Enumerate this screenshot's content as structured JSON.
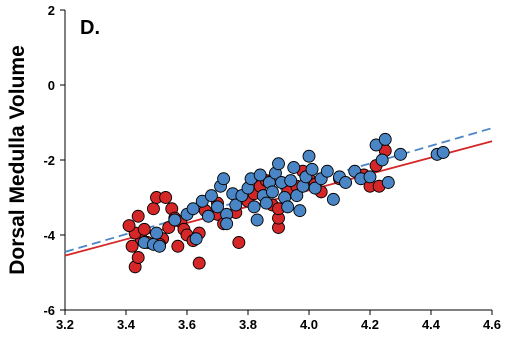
{
  "chart_data": {
    "type": "scatter",
    "panel_label": "D.",
    "title": "",
    "xlabel": "",
    "ylabel": "Dorsal Medulla Volume",
    "xlim": [
      3.2,
      4.6
    ],
    "ylim": [
      -6,
      2
    ],
    "x_ticks": [
      "3.2",
      "3.4",
      "3.6",
      "3.8",
      "4.0",
      "4.2",
      "4.4",
      "4.6"
    ],
    "y_ticks": [
      "-6",
      "-4",
      "-2",
      "0",
      "2"
    ],
    "grid": false,
    "legend": "none",
    "colors": {
      "red": "#d62728",
      "blue": "#4a86c5",
      "red_line": "#d62728",
      "blue_line": "#4a86c5"
    },
    "series": [
      {
        "color": "red",
        "fit": {
          "x": [
            3.2,
            4.6
          ],
          "y": [
            -4.55,
            -1.5
          ],
          "style": "solid"
        },
        "points": [
          [
            3.43,
            -4.85
          ],
          [
            3.44,
            -4.6
          ],
          [
            3.42,
            -4.3
          ],
          [
            3.45,
            -4.1
          ],
          [
            3.43,
            -3.95
          ],
          [
            3.46,
            -3.85
          ],
          [
            3.41,
            -3.75
          ],
          [
            3.44,
            -3.5
          ],
          [
            3.47,
            -4.2
          ],
          [
            3.49,
            -3.3
          ],
          [
            3.5,
            -3.0
          ],
          [
            3.53,
            -3.0
          ],
          [
            3.55,
            -3.3
          ],
          [
            3.56,
            -3.55
          ],
          [
            3.58,
            -3.65
          ],
          [
            3.54,
            -3.8
          ],
          [
            3.59,
            -3.85
          ],
          [
            3.6,
            -4.0
          ],
          [
            3.62,
            -4.15
          ],
          [
            3.52,
            -4.1
          ],
          [
            3.57,
            -4.3
          ],
          [
            3.51,
            -4.25
          ],
          [
            3.64,
            -4.75
          ],
          [
            3.64,
            -3.95
          ],
          [
            3.66,
            -3.35
          ],
          [
            3.7,
            -3.15
          ],
          [
            3.7,
            -3.45
          ],
          [
            3.72,
            -3.7
          ],
          [
            3.77,
            -4.2
          ],
          [
            3.76,
            -3.4
          ],
          [
            3.8,
            -3.1
          ],
          [
            3.82,
            -2.9
          ],
          [
            3.84,
            -2.7
          ],
          [
            3.86,
            -2.55
          ],
          [
            3.88,
            -3.2
          ],
          [
            3.9,
            -3.8
          ],
          [
            3.9,
            -3.55
          ],
          [
            3.9,
            -3.3
          ],
          [
            3.93,
            -2.85
          ],
          [
            3.96,
            -2.7
          ],
          [
            3.98,
            -2.3
          ],
          [
            4.0,
            -2.5
          ],
          [
            4.02,
            -2.65
          ],
          [
            4.04,
            -2.85
          ],
          [
            4.1,
            -2.5
          ],
          [
            4.18,
            -2.4
          ],
          [
            4.2,
            -2.7
          ],
          [
            4.22,
            -2.15
          ],
          [
            4.23,
            -2.7
          ],
          [
            4.25,
            -1.75
          ]
        ]
      },
      {
        "color": "blue",
        "fit": {
          "x": [
            3.2,
            4.6
          ],
          "y": [
            -4.45,
            -1.15
          ],
          "style": "dashed"
        },
        "points": [
          [
            3.46,
            -4.2
          ],
          [
            3.49,
            -4.25
          ],
          [
            3.51,
            -4.3
          ],
          [
            3.5,
            -3.95
          ],
          [
            3.56,
            -3.6
          ],
          [
            3.6,
            -3.45
          ],
          [
            3.62,
            -3.3
          ],
          [
            3.63,
            -4.1
          ],
          [
            3.65,
            -3.1
          ],
          [
            3.67,
            -3.5
          ],
          [
            3.68,
            -2.95
          ],
          [
            3.7,
            -3.25
          ],
          [
            3.71,
            -2.7
          ],
          [
            3.72,
            -2.5
          ],
          [
            3.73,
            -3.45
          ],
          [
            3.73,
            -3.7
          ],
          [
            3.75,
            -2.9
          ],
          [
            3.76,
            -3.2
          ],
          [
            3.78,
            -2.95
          ],
          [
            3.8,
            -2.75
          ],
          [
            3.81,
            -2.5
          ],
          [
            3.82,
            -3.25
          ],
          [
            3.83,
            -3.6
          ],
          [
            3.84,
            -2.4
          ],
          [
            3.85,
            -2.95
          ],
          [
            3.86,
            -3.15
          ],
          [
            3.87,
            -2.6
          ],
          [
            3.88,
            -2.85
          ],
          [
            3.89,
            -2.35
          ],
          [
            3.9,
            -2.1
          ],
          [
            3.91,
            -2.6
          ],
          [
            3.92,
            -3.0
          ],
          [
            3.93,
            -3.25
          ],
          [
            3.94,
            -2.55
          ],
          [
            3.95,
            -2.2
          ],
          [
            3.96,
            -2.95
          ],
          [
            3.97,
            -3.35
          ],
          [
            3.98,
            -2.7
          ],
          [
            3.99,
            -2.45
          ],
          [
            4.0,
            -1.9
          ],
          [
            4.01,
            -2.25
          ],
          [
            4.02,
            -2.75
          ],
          [
            4.04,
            -2.5
          ],
          [
            4.06,
            -2.3
          ],
          [
            4.08,
            -3.05
          ],
          [
            4.1,
            -2.45
          ],
          [
            4.12,
            -2.6
          ],
          [
            4.15,
            -2.3
          ],
          [
            4.17,
            -2.5
          ],
          [
            4.2,
            -2.45
          ],
          [
            4.22,
            -1.6
          ],
          [
            4.24,
            -2.0
          ],
          [
            4.25,
            -1.45
          ],
          [
            4.26,
            -2.6
          ],
          [
            4.3,
            -1.85
          ],
          [
            4.42,
            -1.85
          ],
          [
            4.44,
            -1.8
          ]
        ]
      }
    ]
  }
}
